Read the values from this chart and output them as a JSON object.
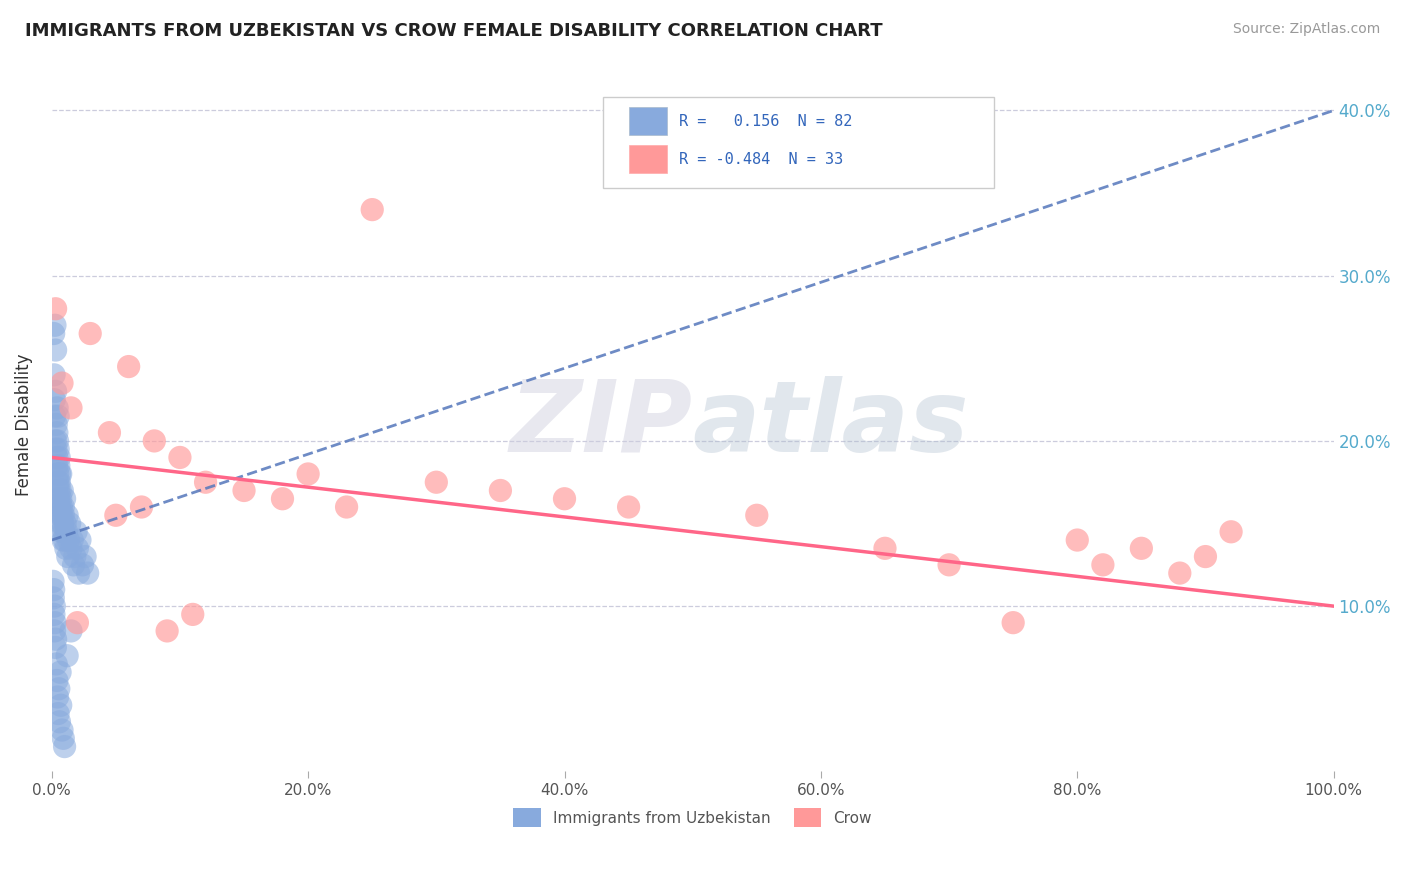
{
  "title": "IMMIGRANTS FROM UZBEKISTAN VS CROW FEMALE DISABILITY CORRELATION CHART",
  "source": "Source: ZipAtlas.com",
  "ylabel": "Female Disability",
  "watermark_zip": "ZIP",
  "watermark_atlas": "atlas",
  "legend_blue_r": "R =   0.156",
  "legend_blue_n": "N = 82",
  "legend_pink_r": "R = -0.484",
  "legend_pink_n": "N = 33",
  "xlim": [
    0.0,
    100.0
  ],
  "ylim": [
    0.0,
    42.0
  ],
  "yticks": [
    10.0,
    20.0,
    30.0,
    40.0
  ],
  "xtick_positions": [
    0,
    20,
    40,
    60,
    80,
    100
  ],
  "xtick_labels": [
    "0.0%",
    "20.0%",
    "40.0%",
    "60.0%",
    "80.0%",
    "100.0%"
  ],
  "ytick_labels": [
    "10.0%",
    "20.0%",
    "30.0%",
    "40.0%"
  ],
  "blue_color": "#88AADD",
  "pink_color": "#FF9999",
  "blue_line_color": "#5577BB",
  "pink_line_color": "#FF6688",
  "legend_text_color": "#3366BB",
  "blue_scatter_x": [
    0.15,
    0.18,
    0.2,
    0.22,
    0.25,
    0.28,
    0.3,
    0.3,
    0.32,
    0.35,
    0.38,
    0.4,
    0.4,
    0.42,
    0.45,
    0.45,
    0.48,
    0.5,
    0.5,
    0.52,
    0.55,
    0.55,
    0.58,
    0.6,
    0.6,
    0.62,
    0.65,
    0.68,
    0.7,
    0.7,
    0.72,
    0.75,
    0.78,
    0.8,
    0.82,
    0.85,
    0.88,
    0.9,
    0.92,
    0.95,
    1.0,
    1.0,
    1.05,
    1.1,
    1.15,
    1.2,
    1.25,
    1.3,
    1.4,
    1.5,
    1.6,
    1.7,
    1.8,
    1.9,
    2.0,
    2.1,
    2.2,
    2.4,
    2.6,
    2.8,
    0.1,
    0.12,
    0.15,
    0.17,
    0.2,
    0.22,
    0.25,
    0.28,
    0.3,
    0.35,
    0.4,
    0.45,
    0.5,
    0.55,
    0.6,
    0.65,
    0.7,
    0.8,
    0.9,
    1.0,
    1.2,
    1.5
  ],
  "blue_scatter_y": [
    26.5,
    24.0,
    22.5,
    21.5,
    27.0,
    20.0,
    25.5,
    23.0,
    19.5,
    21.0,
    18.5,
    20.5,
    19.0,
    22.0,
    18.0,
    20.0,
    17.5,
    19.5,
    21.5,
    17.0,
    18.5,
    16.5,
    19.0,
    17.5,
    16.0,
    18.0,
    17.0,
    15.5,
    16.5,
    18.0,
    15.0,
    16.0,
    14.5,
    15.5,
    17.0,
    15.0,
    14.0,
    16.0,
    15.5,
    14.5,
    16.5,
    14.0,
    15.0,
    13.5,
    14.5,
    15.5,
    13.0,
    14.0,
    15.0,
    13.5,
    14.0,
    12.5,
    13.0,
    14.5,
    13.5,
    12.0,
    14.0,
    12.5,
    13.0,
    12.0,
    11.5,
    10.5,
    11.0,
    9.5,
    10.0,
    8.5,
    9.0,
    7.5,
    8.0,
    6.5,
    5.5,
    4.5,
    3.5,
    5.0,
    3.0,
    6.0,
    4.0,
    2.5,
    2.0,
    1.5,
    7.0,
    8.5
  ],
  "pink_scatter_x": [
    0.3,
    0.8,
    1.5,
    3.0,
    4.5,
    6.0,
    8.0,
    10.0,
    12.0,
    15.0,
    18.0,
    20.0,
    23.0,
    25.0,
    30.0,
    35.0,
    40.0,
    45.0,
    55.0,
    65.0,
    70.0,
    75.0,
    80.0,
    82.0,
    85.0,
    88.0,
    90.0,
    92.0,
    2.0,
    5.0,
    7.0,
    9.0,
    11.0
  ],
  "pink_scatter_y": [
    28.0,
    23.5,
    22.0,
    26.5,
    20.5,
    24.5,
    20.0,
    19.0,
    17.5,
    17.0,
    16.5,
    18.0,
    16.0,
    34.0,
    17.5,
    17.0,
    16.5,
    16.0,
    15.5,
    13.5,
    12.5,
    9.0,
    14.0,
    12.5,
    13.5,
    12.0,
    13.0,
    14.5,
    9.0,
    15.5,
    16.0,
    8.5,
    9.5
  ],
  "blue_trendline_x": [
    0.0,
    100.0
  ],
  "blue_trendline_y": [
    14.0,
    40.0
  ],
  "pink_trendline_x": [
    0.0,
    100.0
  ],
  "pink_trendline_y": [
    19.0,
    10.0
  ],
  "legend_label_blue": "Immigrants from Uzbekistan",
  "legend_label_pink": "Crow"
}
